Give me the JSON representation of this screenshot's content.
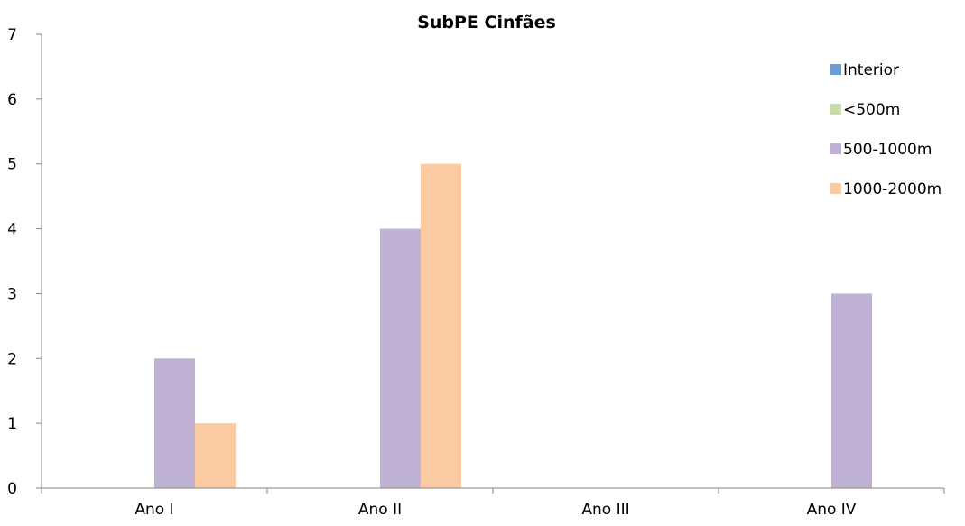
{
  "chart_data": {
    "type": "bar",
    "title": "SubPE Cinfães",
    "xlabel": "",
    "ylabel": "",
    "categories": [
      "Ano I",
      "Ano II",
      "Ano III",
      "Ano IV"
    ],
    "series": [
      {
        "name": "Interior",
        "values": [
          0,
          0,
          0,
          0
        ],
        "color": "#6a9fd8"
      },
      {
        "name": "<500m",
        "values": [
          0,
          0,
          0,
          0
        ],
        "color": "#c9dca8"
      },
      {
        "name": "500-1000m",
        "values": [
          2,
          4,
          0,
          3
        ],
        "color": "#c0b2d5"
      },
      {
        "name": "1000-2000m",
        "values": [
          1,
          5,
          0,
          0
        ],
        "color": "#fbcba1"
      }
    ],
    "ylim": [
      0,
      7
    ],
    "yticks": [
      "0",
      "1",
      "2",
      "3",
      "4",
      "5",
      "6",
      "7"
    ],
    "grid": false,
    "legend_position": "right"
  }
}
